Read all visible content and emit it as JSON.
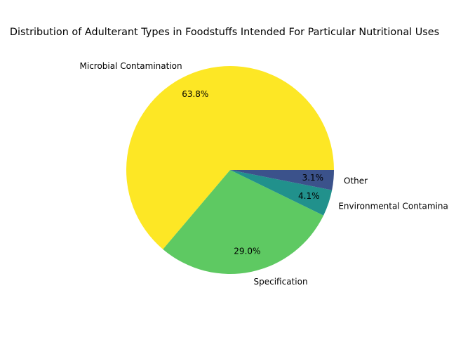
{
  "chart_data": {
    "type": "pie",
    "title": "Distribution of Adulterant Types in Foodstuffs Intended For Particular Nutritional Uses",
    "categories": [
      "Microbial Contamination",
      "Specification",
      "Environmental Contaminants",
      "Other"
    ],
    "values": [
      63.8,
      29.0,
      4.1,
      3.1
    ],
    "percent_labels": [
      "63.8%",
      "29.0%",
      "4.1%",
      "3.1%"
    ],
    "colors": [
      "#fde725",
      "#5ec962",
      "#21918c",
      "#3b528b"
    ],
    "legend": "none"
  }
}
